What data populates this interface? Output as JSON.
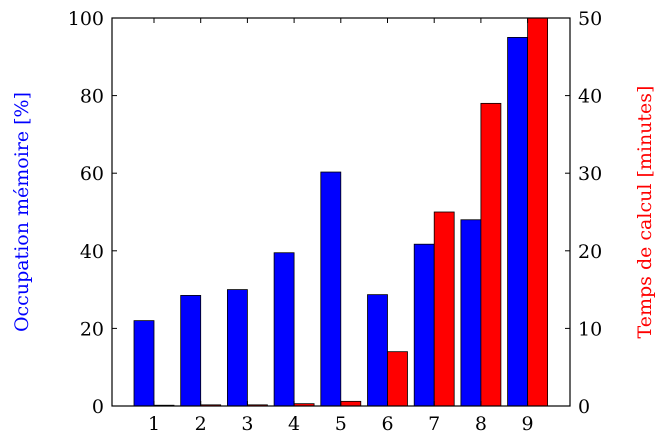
{
  "chart_data": {
    "type": "bar",
    "categories": [
      "1",
      "2",
      "3",
      "4",
      "5",
      "6",
      "7",
      "8",
      "9"
    ],
    "series": [
      {
        "name": "Occupation mémoire [%]",
        "axis": "left",
        "color": "#0000ff",
        "values": [
          22,
          28.5,
          30,
          39.5,
          60.3,
          28.7,
          41.7,
          48,
          95
        ]
      },
      {
        "name": "Temps de calcul [minutes]",
        "axis": "right",
        "color": "#ff0000",
        "values": [
          0.1,
          0.15,
          0.15,
          0.3,
          0.6,
          7,
          25,
          39,
          50
        ]
      }
    ],
    "ylabel_left": "Occupation mémoire [%]",
    "ylabel_right": "Temps de calcul [minutes]",
    "ylim_left": [
      0,
      100
    ],
    "ylim_right": [
      0,
      50
    ],
    "yticks_left": [
      "0",
      "20",
      "40",
      "60",
      "80",
      "100"
    ],
    "yticks_right": [
      "0",
      "10",
      "20",
      "30",
      "40",
      "50"
    ],
    "grid": false,
    "legend": "none"
  }
}
